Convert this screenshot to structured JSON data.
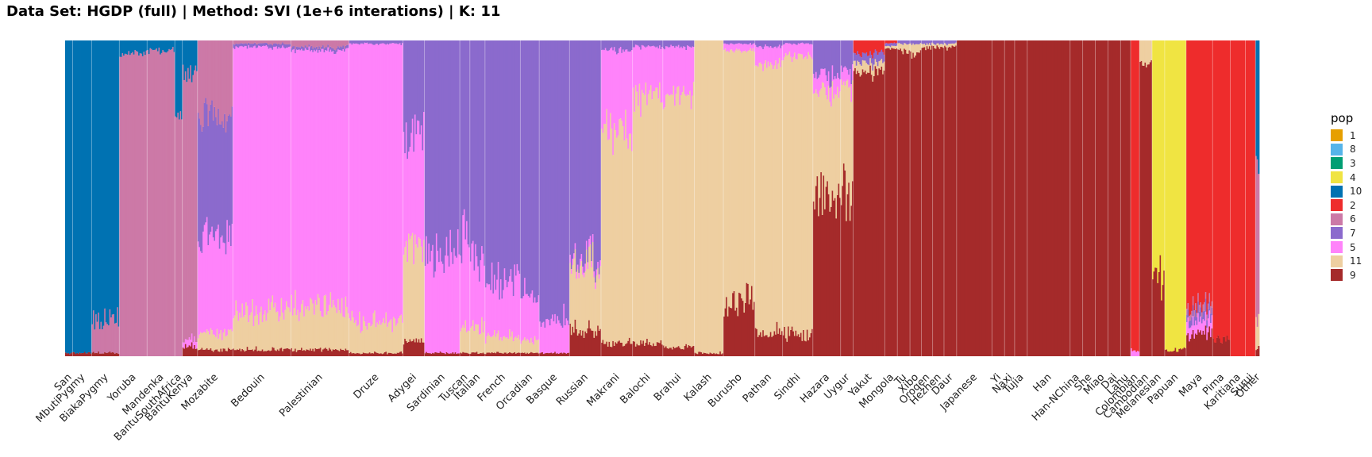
{
  "chart_data": {
    "type": "bar",
    "title": "Data Set: HGDP (full) | Method: SVI (1e+6 interations) | K: 11",
    "stacked": true,
    "normalized": true,
    "ylim": [
      0,
      1
    ],
    "grid": false,
    "legend_title": "pop",
    "legend_position": "right",
    "legend": [
      {
        "label": "1",
        "color": "#E69F00"
      },
      {
        "label": "8",
        "color": "#56B4E9"
      },
      {
        "label": "3",
        "color": "#009E73"
      },
      {
        "label": "4",
        "color": "#F0E442"
      },
      {
        "label": "10",
        "color": "#0072B2"
      },
      {
        "label": "2",
        "color": "#EE2C2C"
      },
      {
        "label": "6",
        "color": "#CC79A7"
      },
      {
        "label": "7",
        "color": "#8B6ACD"
      },
      {
        "label": "5",
        "color": "#FF83FA"
      },
      {
        "label": "11",
        "color": "#EECFA1"
      },
      {
        "label": "9",
        "color": "#A52A2A"
      }
    ],
    "stack_order": [
      "9",
      "11",
      "5",
      "7",
      "6",
      "2",
      "10",
      "4"
    ],
    "categories": [
      "San",
      "MbutiPygmy",
      "BiakaPygmy",
      "Yoruba",
      "Mandenka",
      "BantuSouthAfrica",
      "BantuKenya",
      "Mozabite",
      "Bedouin",
      "Palestinian",
      "Druze",
      "Adygei",
      "Sardinian",
      "Tuscan",
      "Italian",
      "French",
      "Orcadian",
      "Basque",
      "Russian",
      "Makrani",
      "Balochi",
      "Brahui",
      "Kalash",
      "Burusho",
      "Pathan",
      "Sindhi",
      "Hazara",
      "Uygur",
      "Yakut",
      "Mongola",
      "Tu",
      "Xibo",
      "Oroqen",
      "Hezhen",
      "Daur",
      "Japanese",
      "Yi",
      "Naxi",
      "Tujia",
      "Han",
      "Han-NChina",
      "She",
      "Miao",
      "Dai",
      "Lahu",
      "Colombian",
      "Cambodian",
      "Melanesian",
      "Papuan",
      "Maya",
      "Pima",
      "Karitiana",
      "Surui",
      "Other"
    ],
    "sample_counts": [
      6,
      15,
      22,
      22,
      22,
      6,
      12,
      28,
      46,
      46,
      43,
      17,
      28,
      8,
      12,
      28,
      15,
      24,
      25,
      25,
      24,
      25,
      23,
      25,
      22,
      24,
      22,
      10,
      25,
      10,
      10,
      9,
      9,
      9,
      10,
      28,
      10,
      8,
      10,
      34,
      10,
      10,
      10,
      10,
      8,
      7,
      10,
      10,
      17,
      21,
      14,
      12,
      8,
      3
    ],
    "group_means": [
      {
        "9": 0.01,
        "11": 0.0,
        "5": 0.0,
        "7": 0.0,
        "6": 0.0,
        "2": 0.0,
        "10": 0.99,
        "4": 0.0
      },
      {
        "9": 0.01,
        "11": 0.0,
        "5": 0.0,
        "7": 0.0,
        "6": 0.0,
        "2": 0.0,
        "10": 0.99,
        "4": 0.0
      },
      {
        "9": 0.01,
        "11": 0.0,
        "5": 0.0,
        "7": 0.0,
        "6": 0.1,
        "2": 0.0,
        "10": 0.89,
        "4": 0.0
      },
      {
        "9": 0.0,
        "11": 0.0,
        "5": 0.0,
        "7": 0.0,
        "6": 0.96,
        "2": 0.0,
        "10": 0.04,
        "4": 0.0
      },
      {
        "9": 0.0,
        "11": 0.0,
        "5": 0.0,
        "7": 0.0,
        "6": 0.97,
        "2": 0.0,
        "10": 0.03,
        "4": 0.0
      },
      {
        "9": 0.0,
        "11": 0.0,
        "5": 0.0,
        "7": 0.0,
        "6": 0.75,
        "2": 0.0,
        "10": 0.25,
        "4": 0.0
      },
      {
        "9": 0.03,
        "11": 0.0,
        "5": 0.02,
        "7": 0.0,
        "6": 0.85,
        "2": 0.0,
        "10": 0.1,
        "4": 0.0
      },
      {
        "9": 0.02,
        "11": 0.05,
        "5": 0.3,
        "7": 0.4,
        "6": 0.23,
        "2": 0.0,
        "10": 0.0,
        "4": 0.0
      },
      {
        "9": 0.02,
        "11": 0.12,
        "5": 0.84,
        "7": 0.01,
        "6": 0.01,
        "2": 0.0,
        "10": 0.0,
        "4": 0.0
      },
      {
        "9": 0.02,
        "11": 0.13,
        "5": 0.82,
        "7": 0.01,
        "6": 0.02,
        "2": 0.0,
        "10": 0.0,
        "4": 0.0
      },
      {
        "9": 0.01,
        "11": 0.1,
        "5": 0.88,
        "7": 0.01,
        "6": 0.0,
        "2": 0.0,
        "10": 0.0,
        "4": 0.0
      },
      {
        "9": 0.05,
        "11": 0.3,
        "5": 0.35,
        "7": 0.3,
        "6": 0.0,
        "2": 0.0,
        "10": 0.0,
        "4": 0.0
      },
      {
        "9": 0.01,
        "11": 0.0,
        "5": 0.31,
        "7": 0.68,
        "6": 0.0,
        "2": 0.0,
        "10": 0.0,
        "4": 0.0
      },
      {
        "9": 0.01,
        "11": 0.08,
        "5": 0.28,
        "7": 0.63,
        "6": 0.0,
        "2": 0.0,
        "10": 0.0,
        "4": 0.0
      },
      {
        "9": 0.01,
        "11": 0.08,
        "5": 0.22,
        "7": 0.69,
        "6": 0.0,
        "2": 0.0,
        "10": 0.0,
        "4": 0.0
      },
      {
        "9": 0.01,
        "11": 0.05,
        "5": 0.17,
        "7": 0.77,
        "6": 0.0,
        "2": 0.0,
        "10": 0.0,
        "4": 0.0
      },
      {
        "9": 0.01,
        "11": 0.04,
        "5": 0.14,
        "7": 0.81,
        "6": 0.0,
        "2": 0.0,
        "10": 0.0,
        "4": 0.0
      },
      {
        "9": 0.01,
        "11": 0.0,
        "5": 0.1,
        "7": 0.89,
        "6": 0.0,
        "2": 0.0,
        "10": 0.0,
        "4": 0.0
      },
      {
        "9": 0.08,
        "11": 0.2,
        "5": 0.02,
        "7": 0.7,
        "6": 0.0,
        "2": 0.0,
        "10": 0.0,
        "4": 0.0
      },
      {
        "9": 0.04,
        "11": 0.68,
        "5": 0.25,
        "7": 0.03,
        "6": 0.0,
        "2": 0.0,
        "10": 0.0,
        "4": 0.0
      },
      {
        "9": 0.04,
        "11": 0.78,
        "5": 0.16,
        "7": 0.02,
        "6": 0.0,
        "2": 0.0,
        "10": 0.0,
        "4": 0.0
      },
      {
        "9": 0.03,
        "11": 0.8,
        "5": 0.15,
        "7": 0.02,
        "6": 0.0,
        "2": 0.0,
        "10": 0.0,
        "4": 0.0
      },
      {
        "9": 0.01,
        "11": 0.99,
        "5": 0.0,
        "7": 0.0,
        "6": 0.0,
        "2": 0.0,
        "10": 0.0,
        "4": 0.0
      },
      {
        "9": 0.17,
        "11": 0.8,
        "5": 0.02,
        "7": 0.01,
        "6": 0.0,
        "2": 0.0,
        "10": 0.0,
        "4": 0.0
      },
      {
        "9": 0.08,
        "11": 0.84,
        "5": 0.06,
        "7": 0.02,
        "6": 0.0,
        "2": 0.0,
        "10": 0.0,
        "4": 0.0
      },
      {
        "9": 0.07,
        "11": 0.88,
        "5": 0.04,
        "7": 0.01,
        "6": 0.0,
        "2": 0.0,
        "10": 0.0,
        "4": 0.0
      },
      {
        "9": 0.5,
        "11": 0.34,
        "5": 0.05,
        "7": 0.11,
        "6": 0.0,
        "2": 0.0,
        "10": 0.0,
        "4": 0.0
      },
      {
        "9": 0.5,
        "11": 0.35,
        "5": 0.05,
        "7": 0.1,
        "6": 0.0,
        "2": 0.0,
        "10": 0.0,
        "4": 0.0
      },
      {
        "9": 0.9,
        "11": 0.03,
        "5": 0.0,
        "7": 0.03,
        "6": 0.0,
        "2": 0.04,
        "10": 0.0,
        "4": 0.0
      },
      {
        "9": 0.97,
        "11": 0.01,
        "5": 0.0,
        "7": 0.01,
        "6": 0.0,
        "2": 0.01,
        "10": 0.0,
        "4": 0.0
      },
      {
        "9": 0.97,
        "11": 0.02,
        "5": 0.0,
        "7": 0.01,
        "6": 0.0,
        "2": 0.0,
        "10": 0.0,
        "4": 0.0
      },
      {
        "9": 0.96,
        "11": 0.03,
        "5": 0.0,
        "7": 0.01,
        "6": 0.0,
        "2": 0.0,
        "10": 0.0,
        "4": 0.0
      },
      {
        "9": 0.98,
        "11": 0.01,
        "5": 0.0,
        "7": 0.01,
        "6": 0.0,
        "2": 0.0,
        "10": 0.0,
        "4": 0.0
      },
      {
        "9": 0.98,
        "11": 0.01,
        "5": 0.0,
        "7": 0.01,
        "6": 0.0,
        "2": 0.0,
        "10": 0.0,
        "4": 0.0
      },
      {
        "9": 0.98,
        "11": 0.01,
        "5": 0.0,
        "7": 0.01,
        "6": 0.0,
        "2": 0.0,
        "10": 0.0,
        "4": 0.0
      },
      {
        "9": 1.0,
        "11": 0.0,
        "5": 0.0,
        "7": 0.0,
        "6": 0.0,
        "2": 0.0,
        "10": 0.0,
        "4": 0.0
      },
      {
        "9": 1.0,
        "11": 0.0,
        "5": 0.0,
        "7": 0.0,
        "6": 0.0,
        "2": 0.0,
        "10": 0.0,
        "4": 0.0
      },
      {
        "9": 1.0,
        "11": 0.0,
        "5": 0.0,
        "7": 0.0,
        "6": 0.0,
        "2": 0.0,
        "10": 0.0,
        "4": 0.0
      },
      {
        "9": 1.0,
        "11": 0.0,
        "5": 0.0,
        "7": 0.0,
        "6": 0.0,
        "2": 0.0,
        "10": 0.0,
        "4": 0.0
      },
      {
        "9": 1.0,
        "11": 0.0,
        "5": 0.0,
        "7": 0.0,
        "6": 0.0,
        "2": 0.0,
        "10": 0.0,
        "4": 0.0
      },
      {
        "9": 1.0,
        "11": 0.0,
        "5": 0.0,
        "7": 0.0,
        "6": 0.0,
        "2": 0.0,
        "10": 0.0,
        "4": 0.0
      },
      {
        "9": 1.0,
        "11": 0.0,
        "5": 0.0,
        "7": 0.0,
        "6": 0.0,
        "2": 0.0,
        "10": 0.0,
        "4": 0.0
      },
      {
        "9": 1.0,
        "11": 0.0,
        "5": 0.0,
        "7": 0.0,
        "6": 0.0,
        "2": 0.0,
        "10": 0.0,
        "4": 0.0
      },
      {
        "9": 1.0,
        "11": 0.0,
        "5": 0.0,
        "7": 0.0,
        "6": 0.0,
        "2": 0.0,
        "10": 0.0,
        "4": 0.0
      },
      {
        "9": 1.0,
        "11": 0.0,
        "5": 0.0,
        "7": 0.0,
        "6": 0.0,
        "2": 0.0,
        "10": 0.0,
        "4": 0.0
      },
      {
        "9": 0.0,
        "11": 0.0,
        "5": 0.02,
        "7": 0.0,
        "6": 0.0,
        "2": 0.98,
        "10": 0.0,
        "4": 0.0
      },
      {
        "9": 0.92,
        "11": 0.08,
        "5": 0.0,
        "7": 0.0,
        "6": 0.0,
        "2": 0.0,
        "10": 0.0,
        "4": 0.0
      },
      {
        "9": 0.25,
        "11": 0.0,
        "5": 0.0,
        "7": 0.0,
        "6": 0.0,
        "2": 0.0,
        "10": 0.0,
        "4": 0.75
      },
      {
        "9": 0.02,
        "11": 0.0,
        "5": 0.0,
        "7": 0.0,
        "6": 0.0,
        "2": 0.0,
        "10": 0.0,
        "4": 0.98
      },
      {
        "9": 0.07,
        "11": 0.0,
        "5": 0.04,
        "7": 0.03,
        "6": 0.02,
        "2": 0.84,
        "10": 0.0,
        "4": 0.0
      },
      {
        "9": 0.05,
        "11": 0.0,
        "5": 0.0,
        "7": 0.0,
        "6": 0.0,
        "2": 0.95,
        "10": 0.0,
        "4": 0.0
      },
      {
        "9": 0.0,
        "11": 0.0,
        "5": 0.0,
        "7": 0.0,
        "6": 0.0,
        "2": 1.0,
        "10": 0.0,
        "4": 0.0
      },
      {
        "9": 0.0,
        "11": 0.0,
        "5": 0.0,
        "7": 0.0,
        "6": 0.0,
        "2": 1.0,
        "10": 0.0,
        "4": 0.0
      },
      {
        "9": 0.03,
        "11": 0.1,
        "5": 0.0,
        "7": 0.0,
        "6": 0.5,
        "2": 0.0,
        "10": 0.37,
        "4": 0.0
      }
    ]
  }
}
